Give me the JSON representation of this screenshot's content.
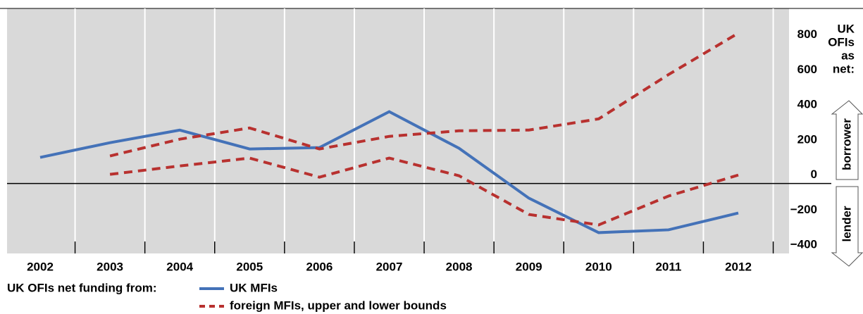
{
  "chart_data": {
    "type": "line",
    "categories": [
      "2002",
      "2003",
      "2004",
      "2005",
      "2006",
      "2007",
      "2008",
      "2009",
      "2010",
      "2011",
      "2012"
    ],
    "series": [
      {
        "name": "UK MFIs",
        "color": "#4472b8",
        "dash": "solid",
        "values": [
          149,
          233,
          305,
          197,
          205,
          410,
          201,
          -84,
          -281,
          -265,
          -169
        ]
      },
      {
        "name": "foreign MFIs, upper and lower bounds",
        "color": "#b8312f",
        "dash": "dashed",
        "values": [
          null,
          157,
          253,
          317,
          197,
          269,
          301,
          305,
          369,
          622,
          859
        ]
      },
      {
        "color": "#b8312f",
        "dash": "dashed",
        "values": [
          null,
          52,
          100,
          145,
          36,
          145,
          44,
          -177,
          -237,
          -72,
          48
        ]
      }
    ],
    "ylim": [
      -400,
      1000
    ],
    "yticks": [
      {
        "value": -400,
        "label": "−400"
      },
      {
        "value": -200,
        "label": "−200"
      },
      0,
      200,
      400,
      600,
      800
    ],
    "legend_title": "UK OFIs net funding from:",
    "side_title": [
      "UK",
      "OFIs",
      "as",
      "net:"
    ],
    "up_arrow": "borrower",
    "down_arrow": "lender"
  }
}
